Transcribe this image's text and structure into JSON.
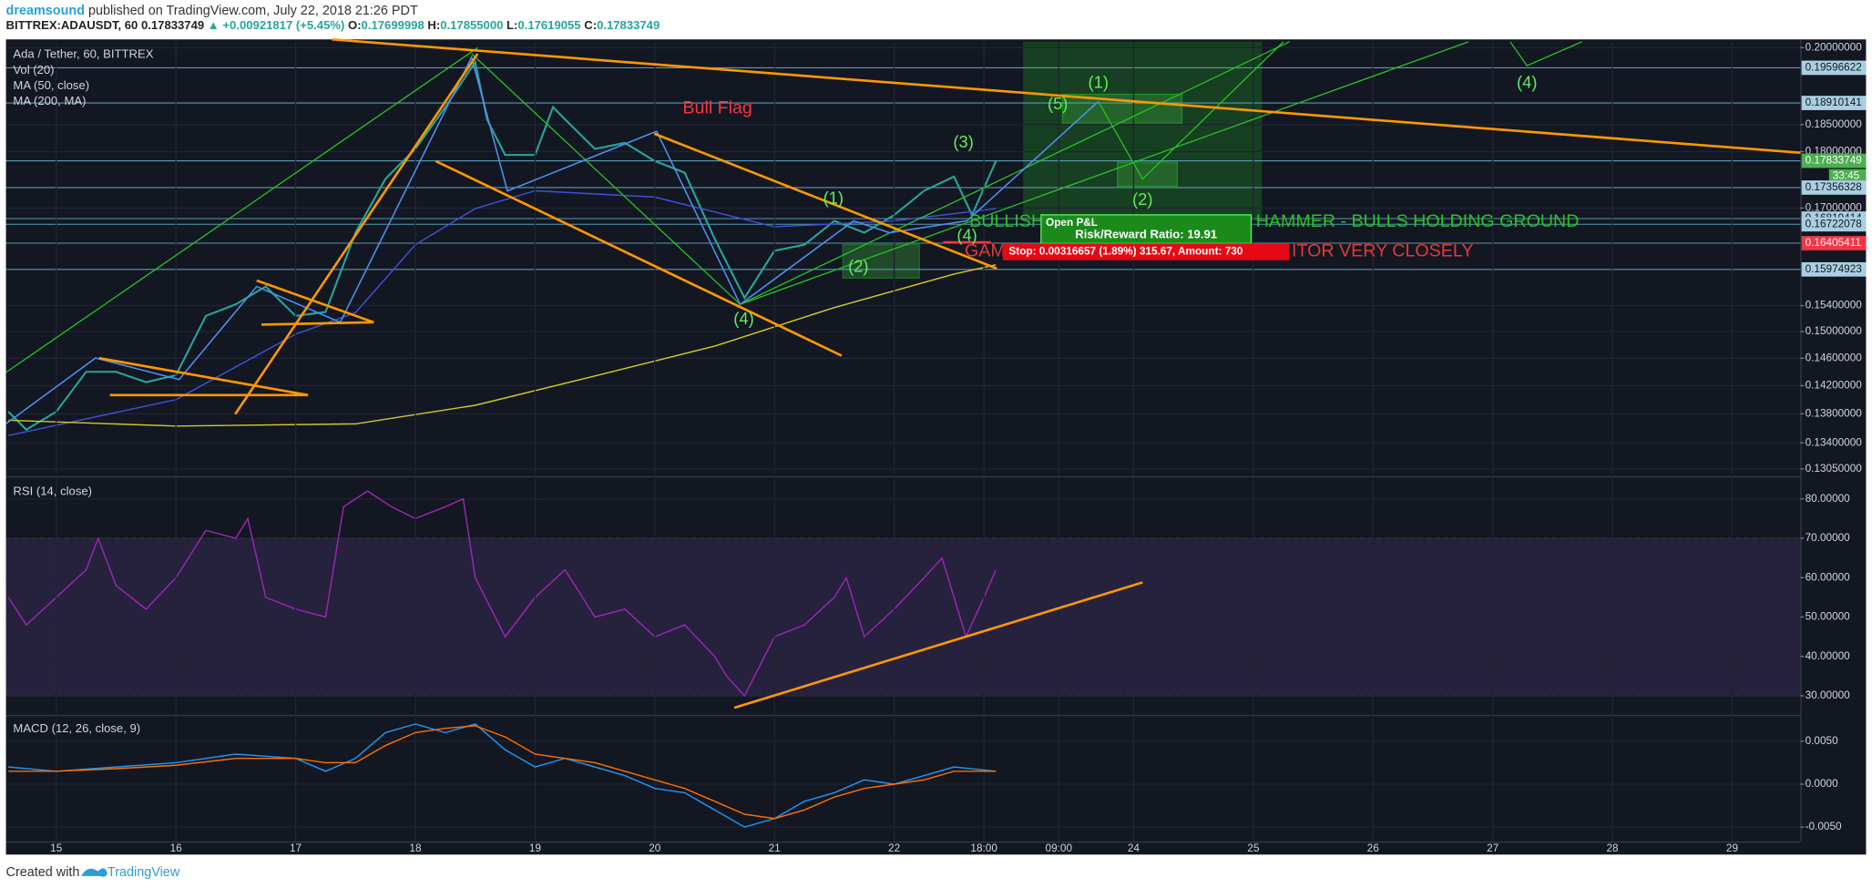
{
  "header": {
    "author": "dreamsound",
    "published": "published on TradingView.com, July 22, 2018 21:26 PDT",
    "symbol": "BITTREX:ADAUSDT, 60",
    "last": "0.17833749",
    "change": "▲ +0.00921817 (+5.45%)",
    "ohlc": [
      {
        "label": "O:",
        "value": "0.17699998"
      },
      {
        "label": "H:",
        "value": "0.17855000"
      },
      {
        "label": "L:",
        "value": "0.17619055"
      },
      {
        "label": "C:",
        "value": "0.17833749"
      }
    ]
  },
  "chart_data": [
    {
      "type": "line",
      "title": "Ada / Tether, 60, BITTREX",
      "volume_label": "Vol (20)",
      "log_scale": true,
      "xlim": [
        14.58,
        29.57
      ],
      "ylim": [
        0.1297,
        0.2012
      ],
      "yticks": [
        {
          "value": 0.2,
          "label": "0.20000000"
        },
        {
          "value": 0.185,
          "label": "0.18500000"
        },
        {
          "value": 0.18,
          "label": "0.18000000"
        },
        {
          "value": 0.17,
          "label": "0.17000000"
        },
        {
          "value": 0.154,
          "label": "0.15400000"
        },
        {
          "value": 0.15,
          "label": "0.15000000"
        },
        {
          "value": 0.146,
          "label": "0.14600000"
        },
        {
          "value": 0.142,
          "label": "0.14200000"
        },
        {
          "value": 0.138,
          "label": "0.13800000"
        },
        {
          "value": 0.134,
          "label": "0.13400000"
        },
        {
          "value": 0.1305,
          "label": "0.13050000"
        }
      ],
      "grid": true,
      "series": [
        {
          "name": "Ada / Tether, 60, BITTREX",
          "color": "#26a69a",
          "x": [
            14.6,
            14.75,
            15,
            15.25,
            15.5,
            15.75,
            16,
            16.25,
            16.5,
            16.75,
            17,
            17.25,
            17.5,
            17.75,
            18,
            18.25,
            18.5,
            18.6,
            18.75,
            19,
            19.15,
            19.25,
            19.5,
            19.75,
            20,
            20.25,
            20.5,
            20.75,
            21,
            21.25,
            21.5,
            21.75,
            22,
            22.25,
            22.5,
            22.65,
            22.85
          ],
          "values": [
            0.1383,
            0.1358,
            0.1383,
            0.144,
            0.144,
            0.1425,
            0.1435,
            0.1524,
            0.1542,
            0.157,
            0.1524,
            0.153,
            0.1658,
            0.1751,
            0.1805,
            0.1883,
            0.1971,
            0.1859,
            0.1794,
            0.1794,
            0.1883,
            0.186,
            0.1805,
            0.1816,
            0.1783,
            0.1762,
            0.1648,
            0.1552,
            0.1628,
            0.1638,
            0.1678,
            0.1658,
            0.1688,
            0.173,
            0.1755,
            0.1688,
            0.1783
          ]
        },
        {
          "name": "MA (50, close)",
          "color": "#3f51d8",
          "x": [
            14.6,
            16,
            17,
            17.5,
            18,
            18.5,
            19,
            20,
            21,
            22,
            22.85
          ],
          "values": [
            0.135,
            0.14,
            0.1496,
            0.1529,
            0.1638,
            0.1699,
            0.173,
            0.1719,
            0.1668,
            0.1678,
            0.1699
          ]
        },
        {
          "name": "MA (200, MA)",
          "color": "#d4c82a",
          "x": [
            14.6,
            16,
            17.5,
            18.5,
            19.5,
            20.5,
            21.5,
            22.5,
            22.85
          ],
          "values": [
            0.1371,
            0.1363,
            0.1366,
            0.1392,
            0.1434,
            0.1478,
            0.1537,
            0.159,
            0.1605
          ]
        }
      ],
      "hlines": [
        {
          "value": 0.19596622,
          "color": "#a9cfe0"
        },
        {
          "value": 0.18910141,
          "color": "#a9cfe0"
        },
        {
          "value": 0.17833749,
          "color": "#4caf50"
        },
        {
          "value": 0.17356328,
          "color": "#a9cfe0"
        },
        {
          "value": 0.16819414,
          "color": "#a9cfe0"
        },
        {
          "value": 0.16722078,
          "color": "#a9cfe0"
        },
        {
          "value": 0.16405411,
          "color": "#f23645"
        },
        {
          "value": 0.15974923,
          "color": "#a9cfe0"
        }
      ],
      "countdown": "33:45"
    },
    {
      "type": "line",
      "title": "RSI (14, close)",
      "xlim": [
        14.58,
        29.57
      ],
      "ylim": [
        25.45,
        85.45
      ],
      "yticks": [
        {
          "value": 80,
          "label": "80.00000"
        },
        {
          "value": 70,
          "label": "70.00000"
        },
        {
          "value": 60,
          "label": "60.00000"
        },
        {
          "value": 50,
          "label": "50.00000"
        },
        {
          "value": 40,
          "label": "40.00000"
        },
        {
          "value": 30,
          "label": "30.00000"
        }
      ],
      "band": [
        30,
        70
      ],
      "series": [
        {
          "color": "#9c27b0",
          "x": [
            14.6,
            14.75,
            15,
            15.25,
            15.35,
            15.5,
            15.75,
            16,
            16.25,
            16.5,
            16.6,
            16.75,
            17,
            17.25,
            17.4,
            17.6,
            17.8,
            18,
            18.25,
            18.4,
            18.5,
            18.75,
            19,
            19.25,
            19.5,
            19.75,
            20,
            20.25,
            20.5,
            20.6,
            20.75,
            21,
            21.25,
            21.5,
            21.6,
            21.75,
            22,
            22.25,
            22.4,
            22.6,
            22.75,
            22.85
          ],
          "values": [
            55,
            48,
            55,
            62,
            70,
            58,
            52,
            60,
            72,
            70,
            75,
            55,
            52,
            50,
            78,
            82,
            78,
            75,
            78,
            80,
            60,
            45,
            55,
            62,
            50,
            52,
            45,
            48,
            40,
            35,
            30,
            45,
            48,
            55,
            60,
            45,
            52,
            60,
            65,
            45,
            55,
            62
          ]
        }
      ]
    },
    {
      "type": "line",
      "title": "MACD (12, 26, close, 9)",
      "xlim": [
        14.58,
        29.57
      ],
      "ylim": [
        -0.00667,
        0.00792
      ],
      "yticks": [
        {
          "value": 0.005,
          "label": "0.0050"
        },
        {
          "value": 0,
          "label": "0.0000"
        },
        {
          "value": -0.005,
          "label": "-0.0050"
        }
      ],
      "xticks": [
        15,
        16,
        17,
        18,
        19,
        20,
        21,
        22,
        {
          "value": 22.75,
          "label": "18:00"
        },
        {
          "value": 23.375,
          "label": "09:00"
        },
        24,
        25,
        26,
        27,
        28,
        29
      ],
      "x": [
        14.6,
        15,
        15.5,
        16,
        16.5,
        17,
        17.25,
        17.5,
        17.75,
        18,
        18.25,
        18.5,
        18.75,
        19,
        19.25,
        19.5,
        19.75,
        20,
        20.25,
        20.5,
        20.75,
        21,
        21.25,
        21.5,
        21.75,
        22,
        22.25,
        22.5,
        22.85
      ],
      "series": [
        {
          "color": "#2196f3",
          "values": [
            0.002,
            0.0015,
            0.002,
            0.0025,
            0.0035,
            0.003,
            0.0015,
            0.003,
            0.006,
            0.007,
            0.006,
            0.007,
            0.004,
            0.002,
            0.003,
            0.002,
            0.001,
            -0.0005,
            -0.001,
            -0.003,
            -0.005,
            -0.004,
            -0.002,
            -0.001,
            0.0005,
            0,
            0.001,
            0.002,
            0.0015
          ]
        },
        {
          "color": "#ff6d00",
          "values": [
            0.0015,
            0.0015,
            0.0018,
            0.0022,
            0.003,
            0.003,
            0.0025,
            0.0025,
            0.0045,
            0.006,
            0.0065,
            0.0068,
            0.0055,
            0.0035,
            0.003,
            0.0025,
            0.0015,
            0.0005,
            -0.0005,
            -0.002,
            -0.0035,
            -0.004,
            -0.003,
            -0.0015,
            -0.0005,
            0,
            0.0005,
            0.0015,
            0.0015
          ]
        }
      ]
    }
  ],
  "annotations": {
    "bull_flag": "Bull Flag",
    "waves": [
      "(1)",
      "(5)",
      "(2)",
      "(3)",
      "(1)",
      "(2)",
      "(4)",
      "(4)",
      "(4)"
    ],
    "bullish": "BULLISH",
    "hammer": "HAMMER - BULLS HOLDING GROUND",
    "gam": "GAM",
    "monitor": "ITOR VERY CLOSELY",
    "open_pl": "Open P&L",
    "risk_reward": "Risk/Reward Ratio: 19.91",
    "stop": "Stop: 0.00316657 (1.89%) 315.67, Amount: 730"
  },
  "footer": {
    "created": "Created with",
    "brand": "TradingView"
  }
}
